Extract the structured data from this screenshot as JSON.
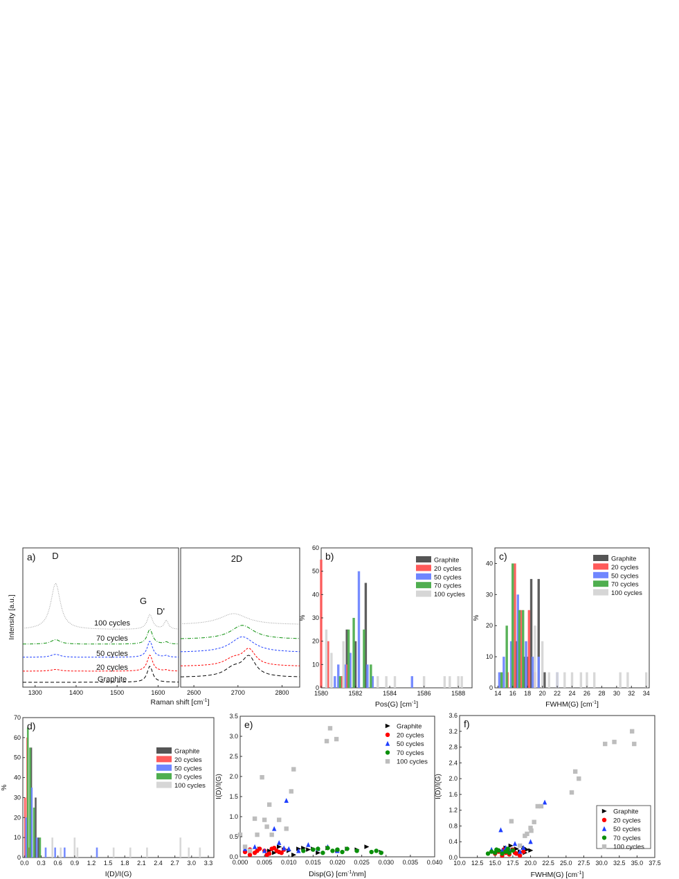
{
  "colors": {
    "graphite": "#555555",
    "c20": "#ff5a5a",
    "c50": "#6f86ff",
    "c70": "#4fae4f",
    "c100": "#d6d6d6",
    "scatter_graphite": "#000000",
    "scatter_20": "#ff0000",
    "scatter_50": "#1f3fff",
    "scatter_70": "#0a8f0a",
    "scatter_100": "#bdbdbd"
  },
  "chart_data": [
    {
      "id": "a",
      "type": "line",
      "panel_label": "a)",
      "xlabel": "Raman shift [cm",
      "xlabel_sup": "-1",
      "xlabel_tail": "]",
      "ylabel": "Intensity [a.u.]",
      "left_xlim": [
        1270,
        1650
      ],
      "left_ticks": [
        "1300",
        "1400",
        "1500",
        "1600"
      ],
      "right_xlim": [
        2570,
        2840
      ],
      "right_ticks": [
        "2600",
        "2700",
        "2800"
      ],
      "peak_labels": [
        "D",
        "G",
        "D'",
        "2D"
      ],
      "series": [
        {
          "name": "Graphite",
          "offset": 0,
          "D": 0.0,
          "G": 0.65,
          "Dp": 0.0,
          "twoD": 0.55
        },
        {
          "name": "20 cycles",
          "offset": 1,
          "D": 0.07,
          "G": 0.65,
          "Dp": 0.04,
          "twoD": 0.45
        },
        {
          "name": "50 cycles",
          "offset": 2,
          "D": 0.12,
          "G": 0.65,
          "Dp": 0.06,
          "twoD": 0.45
        },
        {
          "name": "70 cycles",
          "offset": 3,
          "D": 0.18,
          "G": 0.6,
          "Dp": 0.08,
          "twoD": 0.4
        },
        {
          "name": "100 cycles",
          "offset": 4,
          "D": 1.55,
          "G": 0.5,
          "Dp": 0.3,
          "twoD": 0.32
        }
      ]
    },
    {
      "id": "b",
      "type": "bar",
      "panel_label": "b)",
      "xlabel": "Pos(G) [cm",
      "xlabel_sup": "-1",
      "xlabel_tail": "]",
      "ylabel": "%",
      "xlim": [
        1580,
        1588.8
      ],
      "ylim": [
        0,
        60
      ],
      "xticks": [
        "1580",
        "1582",
        "1584",
        "1586",
        "1588"
      ],
      "yticks": [
        "0",
        "10",
        "20",
        "30",
        "40",
        "50",
        "60"
      ],
      "legend": [
        "Graphite",
        "20 cycles",
        "50 cycles",
        "70 cycles",
        "100 cycles"
      ],
      "series": [
        {
          "name": "Graphite",
          "x": [
            1581.2,
            1581.5,
            1582.0,
            1582.6
          ],
          "values": [
            5,
            25,
            20,
            45
          ]
        },
        {
          "name": "20 cycles",
          "x": [
            1580.0,
            1580.4,
            1581.2,
            1581.5
          ],
          "values": [
            55,
            20,
            5,
            10
          ]
        },
        {
          "name": "50 cycles",
          "x": [
            1580.8,
            1581.0,
            1581.4,
            1581.7,
            1582.2,
            1582.7,
            1583.0,
            1585.3
          ],
          "values": [
            5,
            10,
            10,
            15,
            50,
            10,
            5,
            5
          ]
        },
        {
          "name": "70 cycles",
          "x": [
            1581.1,
            1581.6,
            1581.9,
            1582.5,
            1582.9
          ],
          "values": [
            5,
            25,
            30,
            25,
            10
          ]
        },
        {
          "name": "100 cycles",
          "x": [
            1580.3,
            1580.6,
            1581.3,
            1583.3,
            1583.8,
            1584.3,
            1586.0,
            1587.2,
            1587.5,
            1588.0,
            1588.2
          ],
          "values": [
            25,
            15,
            20,
            5,
            5,
            5,
            5,
            5,
            5,
            5,
            5
          ]
        }
      ]
    },
    {
      "id": "c",
      "type": "bar",
      "panel_label": "c)",
      "xlabel": "FWHM(G) [cm",
      "xlabel_sup": "-1",
      "xlabel_tail": "]",
      "ylabel": "%",
      "xlim": [
        13.6,
        34.4
      ],
      "ylim": [
        0,
        45
      ],
      "xticks": [
        "14",
        "16",
        "18",
        "20",
        "22",
        "24",
        "26",
        "28",
        "30",
        "32",
        "34"
      ],
      "yticks": [
        "0",
        "10",
        "20",
        "30",
        "40"
      ],
      "legend": [
        "Graphite",
        "20 cycles",
        "50 cycles",
        "70 cycles",
        "100 cycles"
      ],
      "series": [
        {
          "name": "Graphite",
          "x": [
            16.5,
            17.5,
            18.0,
            18.5,
            19.5,
            20.3
          ],
          "values": [
            15,
            10,
            10,
            35,
            35,
            5
          ]
        },
        {
          "name": "20 cycles",
          "x": [
            15.3,
            16.3,
            17.1,
            18.2,
            19.0
          ],
          "values": [
            5,
            40,
            25,
            25,
            5
          ]
        },
        {
          "name": "50 cycles",
          "x": [
            14.2,
            14.8,
            15.8,
            16.7,
            17.8,
            18.7,
            19.5,
            22.0
          ],
          "values": [
            5,
            10,
            15,
            30,
            15,
            10,
            10,
            5
          ]
        },
        {
          "name": "70 cycles",
          "x": [
            14.5,
            15.2,
            16.0,
            16.9,
            17.4
          ],
          "values": [
            5,
            20,
            40,
            25,
            25
          ]
        },
        {
          "name": "100 cycles",
          "x": [
            19.0,
            20.0,
            20.9,
            22.0,
            23.0,
            24.0,
            25.2,
            26.0,
            27.0,
            30.5,
            31.5,
            34.0
          ],
          "values": [
            20,
            15,
            5,
            5,
            5,
            5,
            5,
            5,
            5,
            5,
            5,
            5
          ]
        }
      ]
    },
    {
      "id": "d",
      "type": "bar",
      "panel_label": "d)",
      "xlabel": "I(D)/I(G)",
      "ylabel": "%",
      "xlim": [
        -0.03,
        3.4
      ],
      "ylim": [
        0,
        70
      ],
      "xticks": [
        "0.0",
        "0.3",
        "0.6",
        "0.9",
        "1.2",
        "1.5",
        "1.8",
        "2.1",
        "2.4",
        "2.7",
        "3.0",
        "3.3"
      ],
      "yticks": [
        "0",
        "10",
        "20",
        "30",
        "40",
        "50",
        "60",
        "70"
      ],
      "legend": [
        "Graphite",
        "20 cycles",
        "50 cycles",
        "70 cycles",
        "100 cycles"
      ],
      "series": [
        {
          "name": "Graphite",
          "x": [
            0.12,
            0.2,
            0.25
          ],
          "values": [
            55,
            30,
            10
          ]
        },
        {
          "name": "20 cycles",
          "x": [
            0.01,
            0.05,
            0.09
          ],
          "values": [
            30,
            60,
            5
          ]
        },
        {
          "name": "50 cycles",
          "x": [
            0.03,
            0.13,
            0.22,
            0.38,
            0.55,
            0.72,
            1.3
          ],
          "values": [
            20,
            35,
            10,
            5,
            5,
            5,
            5
          ]
        },
        {
          "name": "70 cycles",
          "x": [
            0.06,
            0.1,
            0.17,
            0.28
          ],
          "values": [
            65,
            55,
            25,
            10
          ]
        },
        {
          "name": "100 cycles",
          "x": [
            0.5,
            0.65,
            0.9,
            0.95,
            1.6,
            1.9,
            2.2,
            2.8,
            2.95,
            3.15
          ],
          "values": [
            10,
            5,
            10,
            5,
            5,
            5,
            5,
            10,
            5,
            5
          ]
        }
      ]
    },
    {
      "id": "e",
      "type": "scatter",
      "panel_label": "e)",
      "xlabel": "Disp(G) [cm",
      "xlabel_sup": "-1",
      "xlabel_tail": "/nm]",
      "ylabel": "I(D)/I(G)",
      "xlim": [
        0.0,
        0.04
      ],
      "ylim": [
        0.0,
        3.5
      ],
      "xticks": [
        "0.000",
        "0.005",
        "0.010",
        "0.015",
        "0.020",
        "0.025",
        "0.030",
        "0.035",
        "0.040"
      ],
      "yticks": [
        "0.0",
        "0.5",
        "1.0",
        "1.5",
        "2.0",
        "2.5",
        "3.0",
        "3.5"
      ],
      "legend": [
        "Graphite",
        "20 cycles",
        "50 cycles",
        "70 cycles",
        "100 cycles"
      ],
      "series": [
        {
          "name": "Graphite",
          "marker": "triangle-right",
          "x": [
            0.004,
            0.006,
            0.008,
            0.009,
            0.011,
            0.012,
            0.013,
            0.014,
            0.016,
            0.018,
            0.02,
            0.022,
            0.024,
            0.026,
            0.029,
            0.007,
            0.01,
            0.015
          ],
          "y": [
            0.2,
            0.15,
            0.25,
            0.18,
            0.05,
            0.2,
            0.22,
            0.18,
            0.1,
            0.22,
            0.15,
            0.2,
            0.18,
            0.25,
            0.12,
            0.1,
            0.15,
            0.2
          ]
        },
        {
          "name": "20 cycles",
          "marker": "circle",
          "x": [
            0.001,
            0.002,
            0.003,
            0.004,
            0.005,
            0.006,
            0.007,
            0.008,
            0.009,
            0.002,
            0.0035,
            0.0055,
            0.0065,
            0.0075,
            0.0085
          ],
          "y": [
            0.12,
            0.18,
            0.1,
            0.2,
            0.15,
            0.08,
            0.22,
            0.12,
            0.18,
            0.05,
            0.15,
            0.05,
            0.2,
            0.15,
            0.1
          ]
        },
        {
          "name": "50 cycles",
          "marker": "triangle-up",
          "x": [
            0.001,
            0.003,
            0.005,
            0.007,
            0.008,
            0.009,
            0.0095,
            0.01,
            0.012,
            0.014,
            0.016,
            0.018,
            0.02
          ],
          "y": [
            0.2,
            0.25,
            0.15,
            0.7,
            0.35,
            0.22,
            1.4,
            0.2,
            0.15,
            0.3,
            0.2,
            0.25,
            0.15
          ]
        },
        {
          "name": "70 cycles",
          "marker": "circle",
          "x": [
            0.013,
            0.015,
            0.017,
            0.018,
            0.019,
            0.021,
            0.022,
            0.024,
            0.027,
            0.028,
            0.029,
            0.016,
            0.02
          ],
          "y": [
            0.15,
            0.18,
            0.1,
            0.22,
            0.15,
            0.12,
            0.2,
            0.15,
            0.12,
            0.15,
            0.1,
            0.2,
            0.18
          ]
        },
        {
          "name": "100 cycles",
          "marker": "square",
          "x": [
            0.0,
            0.001,
            0.002,
            0.003,
            0.0035,
            0.0045,
            0.005,
            0.0055,
            0.006,
            0.0065,
            0.008,
            0.0095,
            0.0105,
            0.011,
            0.0178,
            0.0185,
            0.0198
          ],
          "y": [
            0.55,
            0.25,
            0.15,
            0.95,
            0.55,
            1.98,
            0.92,
            0.75,
            1.3,
            0.55,
            0.92,
            0.7,
            1.63,
            2.18,
            2.88,
            3.2,
            2.93
          ]
        }
      ]
    },
    {
      "id": "f",
      "type": "scatter",
      "panel_label": "f)",
      "xlabel": "FWHM(G) [cm",
      "xlabel_sup": "-1",
      "xlabel_tail": "]",
      "ylabel": "I(D)/I(G)",
      "xlim": [
        10.0,
        37.5
      ],
      "ylim": [
        0.0,
        3.6
      ],
      "xticks": [
        "10.0",
        "12.5",
        "15.0",
        "17.5",
        "20.0",
        "22.5",
        "25.0",
        "27.5",
        "30.0",
        "32.5",
        "35.0",
        "37.5"
      ],
      "yticks": [
        "0.0",
        "0.4",
        "0.8",
        "1.2",
        "1.6",
        "2.0",
        "2.4",
        "2.8",
        "3.2",
        "3.6"
      ],
      "legend": [
        "Graphite",
        "20 cycles",
        "50 cycles",
        "70 cycles",
        "100 cycles"
      ],
      "series": [
        {
          "name": "Graphite",
          "marker": "triangle-right",
          "x": [
            16.0,
            16.5,
            17.0,
            17.5,
            18.0,
            18.5,
            19.0,
            19.5,
            20.0,
            18.2,
            17.2,
            19.2
          ],
          "y": [
            0.15,
            0.25,
            0.18,
            0.2,
            0.22,
            0.15,
            0.25,
            0.2,
            0.18,
            0.1,
            0.3,
            0.12
          ]
        },
        {
          "name": "20 cycles",
          "marker": "circle",
          "x": [
            15.0,
            15.5,
            16.0,
            16.5,
            17.0,
            17.5,
            18.0,
            18.5,
            19.0,
            16.2,
            17.8
          ],
          "y": [
            0.1,
            0.15,
            0.05,
            0.12,
            0.08,
            0.2,
            0.1,
            0.05,
            0.15,
            0.2,
            0.12
          ]
        },
        {
          "name": "50 cycles",
          "marker": "triangle-up",
          "x": [
            14.5,
            15.0,
            15.8,
            16.5,
            17.0,
            17.8,
            18.5,
            19.0,
            20.0,
            22.0,
            16.0
          ],
          "y": [
            0.2,
            0.15,
            0.7,
            0.25,
            0.2,
            0.35,
            0.15,
            0.25,
            0.4,
            1.4,
            0.18
          ]
        },
        {
          "name": "70 cycles",
          "marker": "circle",
          "x": [
            14.0,
            14.5,
            15.0,
            15.5,
            16.0,
            16.5,
            17.0,
            17.5,
            15.2,
            16.8
          ],
          "y": [
            0.1,
            0.15,
            0.12,
            0.18,
            0.1,
            0.15,
            0.12,
            0.18,
            0.2,
            0.22
          ]
        },
        {
          "name": "100 cycles",
          "marker": "square",
          "x": [
            17.3,
            18.5,
            19.2,
            19.5,
            20.0,
            20.1,
            20.5,
            21.0,
            21.5,
            25.8,
            26.3,
            26.8,
            30.5,
            31.8,
            34.3,
            34.6
          ],
          "y": [
            0.92,
            0.3,
            0.55,
            0.6,
            0.75,
            0.68,
            0.9,
            1.3,
            1.3,
            1.65,
            2.18,
            2.0,
            2.88,
            2.93,
            3.2,
            2.88
          ]
        }
      ]
    }
  ]
}
